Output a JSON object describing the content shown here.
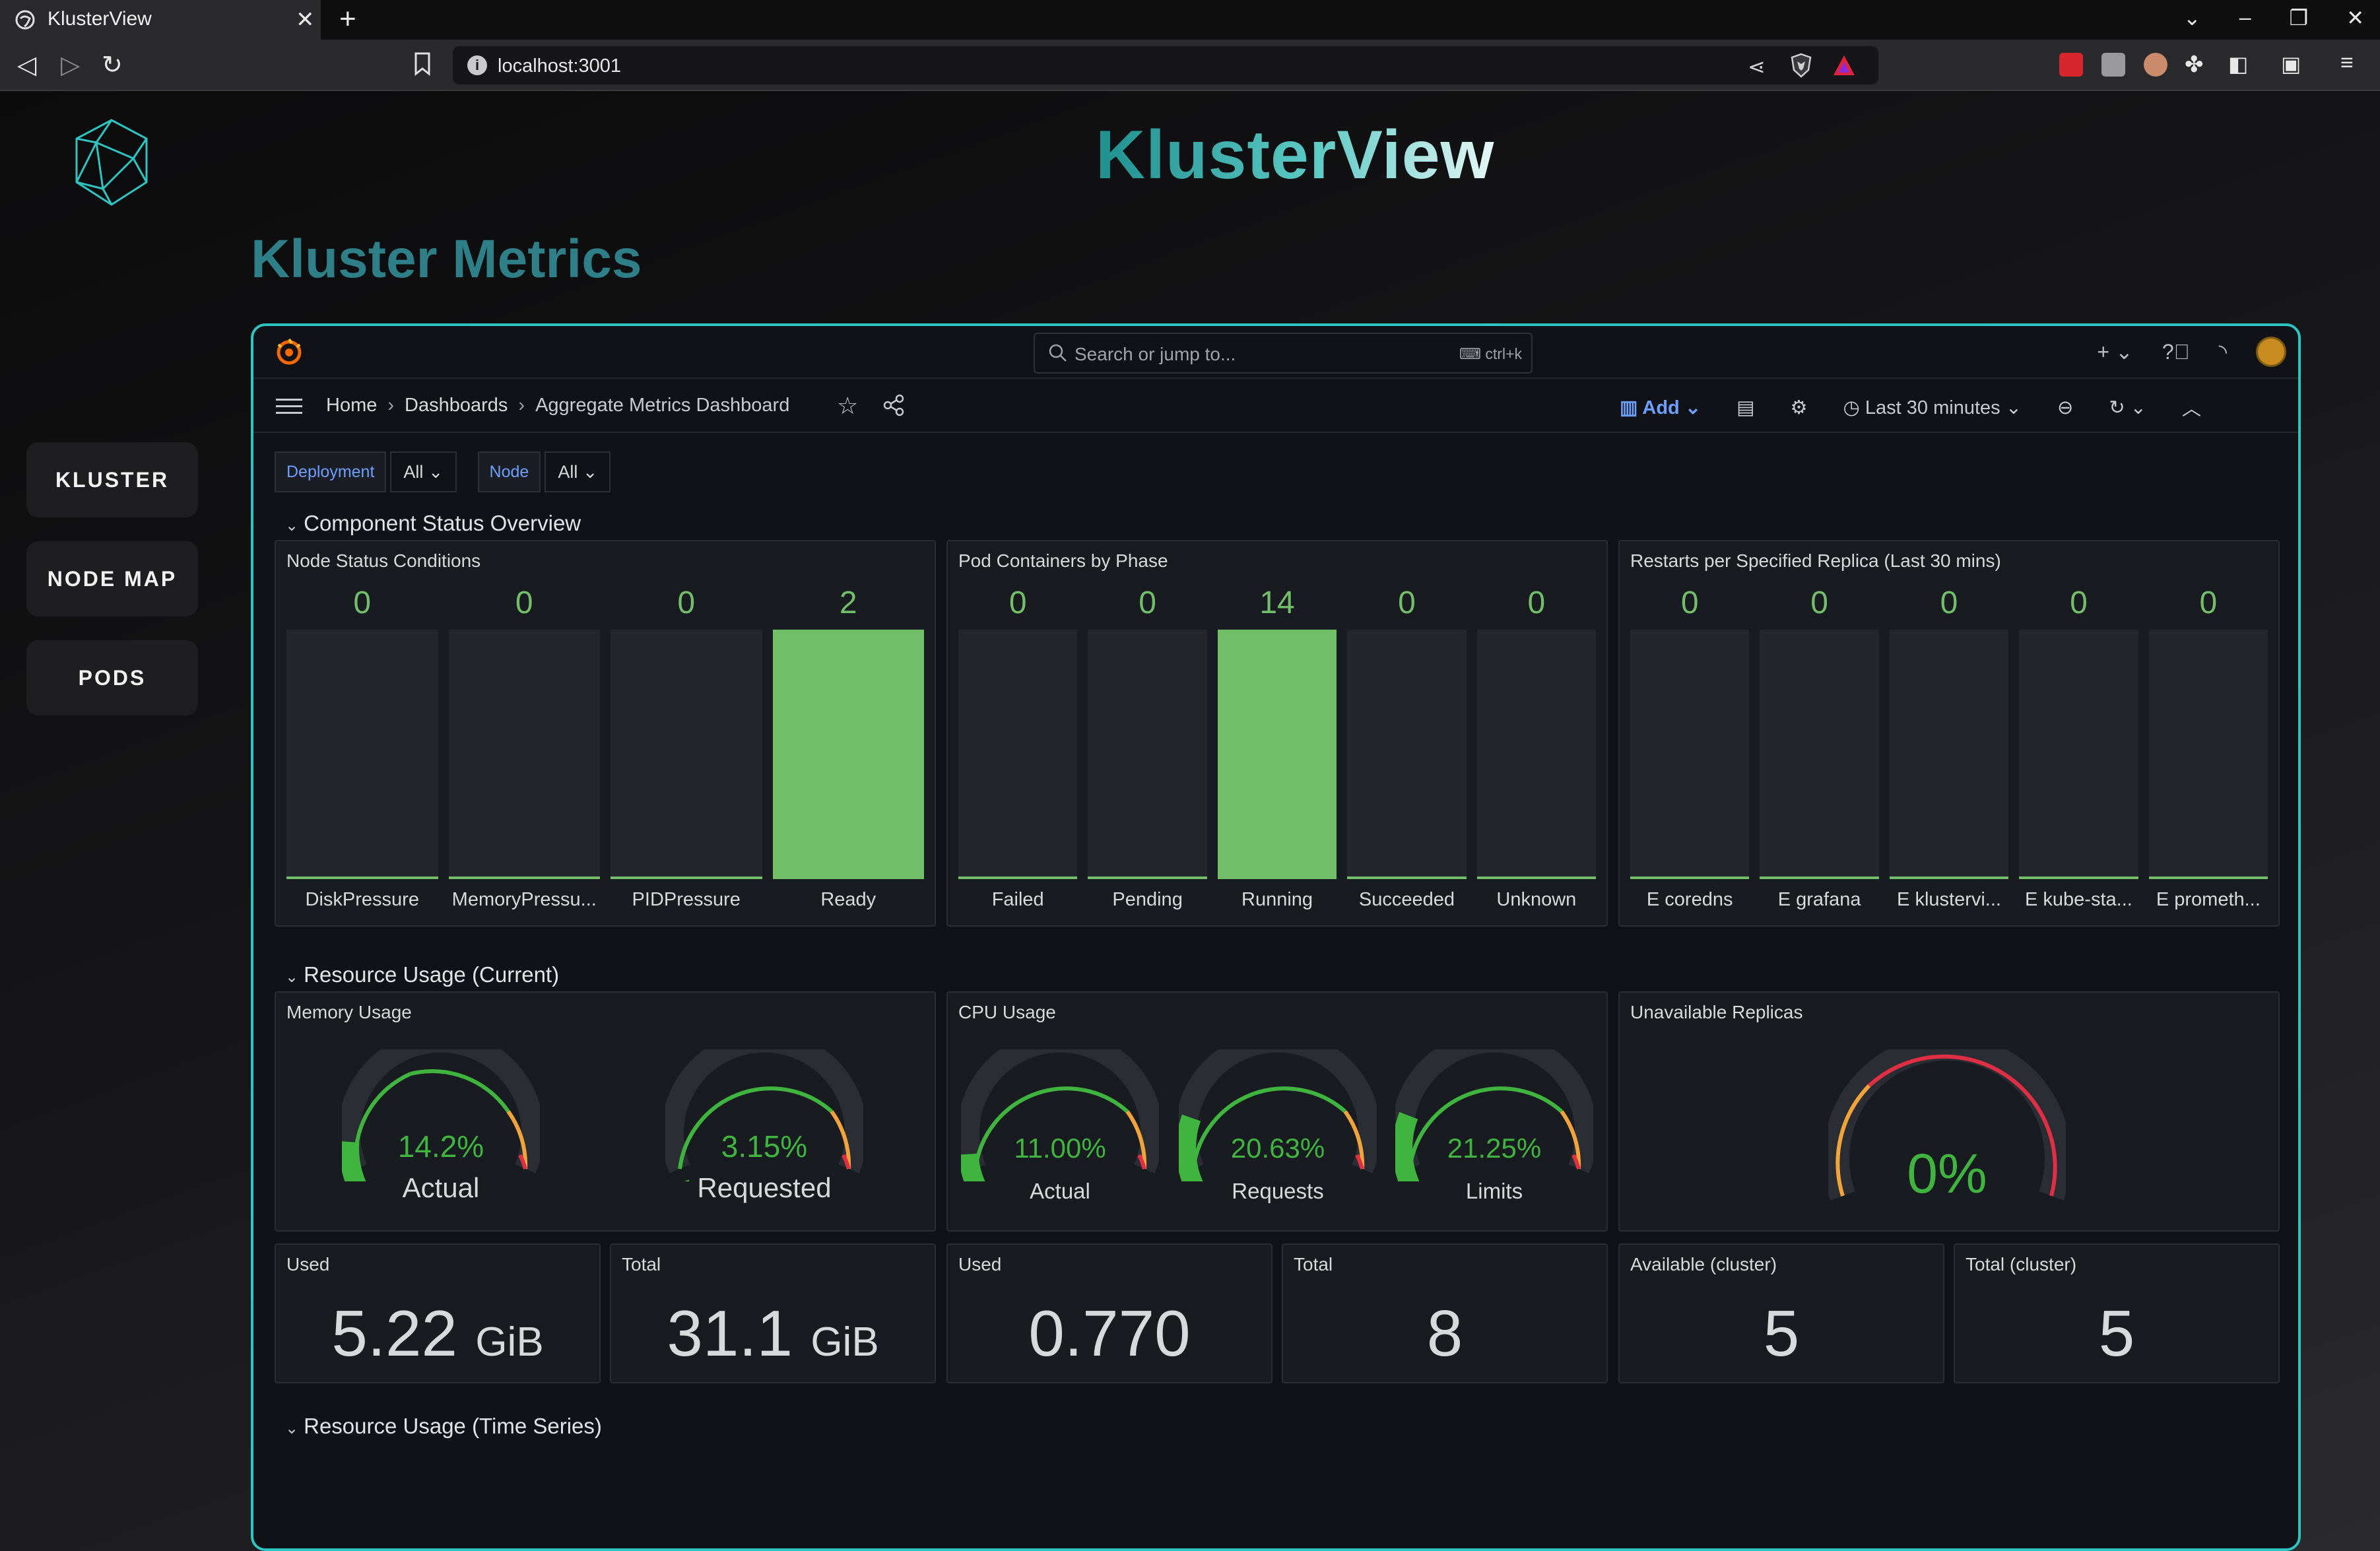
{
  "browser": {
    "tab_title": "KlusterView",
    "url": "localhost:3001"
  },
  "app": {
    "brand": "KlusterView",
    "page_title": "Kluster Metrics",
    "nav": [
      "KLUSTER",
      "NODE MAP",
      "PODS"
    ]
  },
  "grafana": {
    "search_placeholder": "Search or jump to...",
    "search_shortcut": "ctrl+k",
    "breadcrumbs": [
      "Home",
      "Dashboards",
      "Aggregate Metrics Dashboard"
    ],
    "add_label": "Add",
    "time_range": "Last 30 minutes",
    "variables": [
      {
        "label": "Deployment",
        "value": "All"
      },
      {
        "label": "Node",
        "value": "All"
      }
    ],
    "rows": {
      "status": "Component Status Overview",
      "current": "Resource Usage (Current)",
      "timeseries": "Resource Usage (Time Series)"
    },
    "panels": {
      "node_status": {
        "title": "Node Status Conditions",
        "bars": [
          {
            "label": "DiskPressure",
            "value": "0"
          },
          {
            "label": "MemoryPressu...",
            "value": "0"
          },
          {
            "label": "PIDPressure",
            "value": "0"
          },
          {
            "label": "Ready",
            "value": "2"
          }
        ]
      },
      "pod_phase": {
        "title": "Pod Containers by Phase",
        "bars": [
          {
            "label": "Failed",
            "value": "0"
          },
          {
            "label": "Pending",
            "value": "0"
          },
          {
            "label": "Running",
            "value": "14"
          },
          {
            "label": "Succeeded",
            "value": "0"
          },
          {
            "label": "Unknown",
            "value": "0"
          }
        ]
      },
      "restarts": {
        "title": "Restarts per Specified Replica (Last 30 mins)",
        "bars": [
          {
            "label": "E coredns",
            "value": "0"
          },
          {
            "label": "E grafana",
            "value": "0"
          },
          {
            "label": "E klustervi...",
            "value": "0"
          },
          {
            "label": "E kube-sta...",
            "value": "0"
          },
          {
            "label": "E prometh...",
            "value": "0"
          }
        ]
      },
      "memory": {
        "title": "Memory Usage",
        "gauges": [
          {
            "value": "14.2%",
            "label": "Actual",
            "fraction": 0.142
          },
          {
            "value": "3.15%",
            "label": "Requested",
            "fraction": 0.0315
          }
        ]
      },
      "cpu": {
        "title": "CPU Usage",
        "gauges": [
          {
            "value": "11.00%",
            "label": "Actual",
            "fraction": 0.11
          },
          {
            "value": "20.63%",
            "label": "Requests",
            "fraction": 0.2063
          },
          {
            "value": "21.25%",
            "label": "Limits",
            "fraction": 0.2125
          }
        ]
      },
      "unavailable": {
        "title": "Unavailable Replicas",
        "value": "0%"
      },
      "stats": [
        {
          "title": "Used",
          "value": "5.22",
          "unit": "GiB"
        },
        {
          "title": "Total",
          "value": "31.1",
          "unit": "GiB"
        },
        {
          "title": "Used",
          "value": "0.770",
          "unit": ""
        },
        {
          "title": "Total",
          "value": "8",
          "unit": ""
        },
        {
          "title": "Available (cluster)",
          "value": "5",
          "unit": ""
        },
        {
          "title": "Total (cluster)",
          "value": "5",
          "unit": ""
        }
      ]
    }
  },
  "colors": {
    "accent": "#2ec4c2",
    "ok_green": "#73bf69",
    "gauge_green": "#3fb43f",
    "link_blue": "#6e9fff"
  }
}
